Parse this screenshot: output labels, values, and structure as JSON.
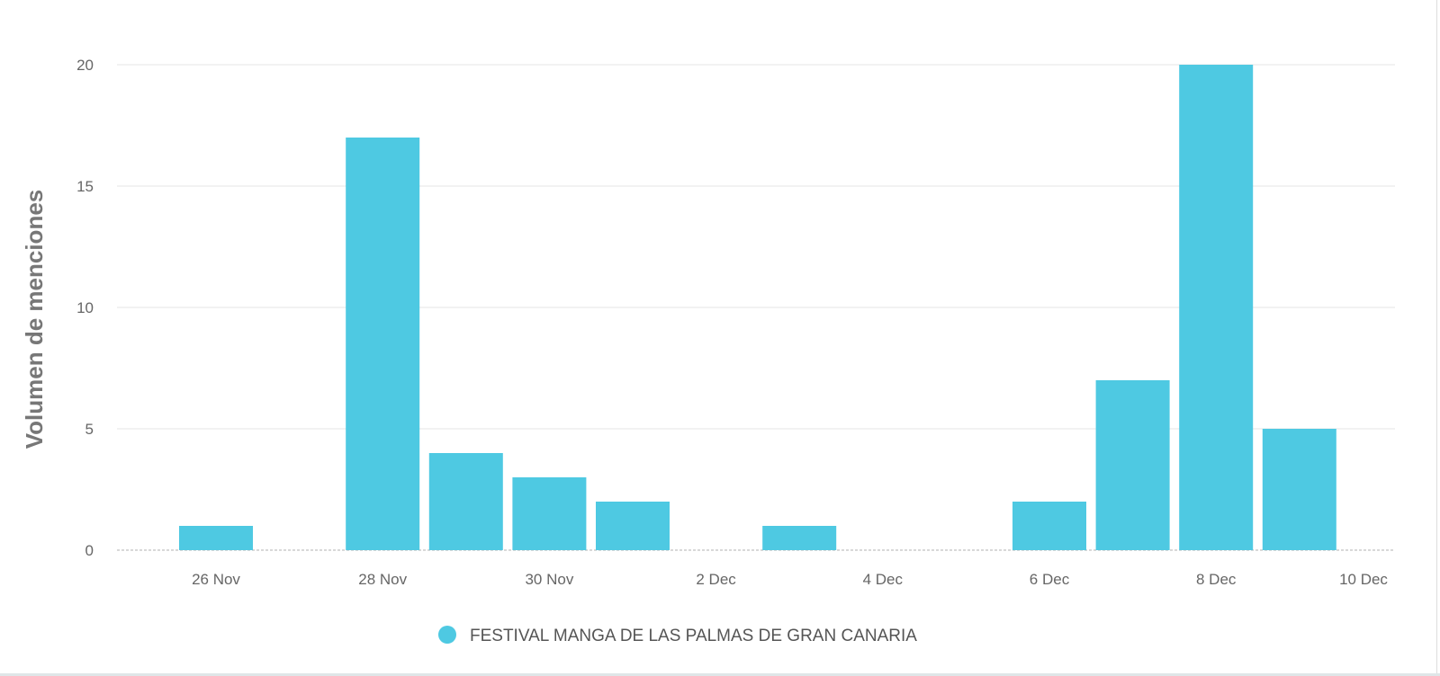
{
  "chart_data": {
    "type": "bar",
    "title": "",
    "xlabel": "",
    "ylabel": "Volumen de menciones",
    "ylim": [
      0,
      20
    ],
    "yticks": [
      0,
      5,
      10,
      15,
      20
    ],
    "grid": true,
    "legend_placement": "bottom",
    "x_tick_labels": [
      "26 Nov",
      "28 Nov",
      "30 Nov",
      "2 Dec",
      "4 Dec",
      "6 Dec",
      "8 Dec",
      "10 Dec"
    ],
    "categories": [
      "26 Nov",
      "27 Nov",
      "28 Nov",
      "29 Nov",
      "30 Nov",
      "1 Dec",
      "2 Dec",
      "3 Dec",
      "4 Dec",
      "5 Dec",
      "6 Dec",
      "7 Dec",
      "8 Dec",
      "9 Dec"
    ],
    "series": [
      {
        "name": "FESTIVAL MANGA DE LAS PALMAS DE GRAN CANARIA",
        "color": "#4ec9e2",
        "values": [
          1,
          0,
          17,
          4,
          3,
          2,
          0,
          1,
          0,
          0,
          2,
          7,
          20,
          5
        ]
      }
    ]
  }
}
